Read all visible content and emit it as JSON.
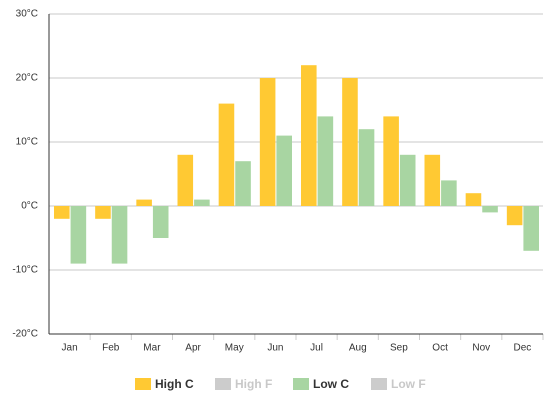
{
  "chart_data": {
    "type": "bar",
    "categories": [
      "Jan",
      "Feb",
      "Mar",
      "Apr",
      "May",
      "Jun",
      "Jul",
      "Aug",
      "Sep",
      "Oct",
      "Nov",
      "Dec"
    ],
    "series": [
      {
        "name": "High C",
        "color": "#ffc933",
        "values": [
          -2,
          -2,
          1,
          8,
          16,
          20,
          22,
          20,
          14,
          8,
          2,
          -3
        ]
      },
      {
        "name": "High F",
        "color": "#cccccc",
        "values": null,
        "hidden": true
      },
      {
        "name": "Low C",
        "color": "#a8d5a2",
        "values": [
          -9,
          -9,
          -5,
          1,
          7,
          11,
          14,
          12,
          8,
          4,
          -1,
          -7
        ]
      },
      {
        "name": "Low F",
        "color": "#cccccc",
        "values": null,
        "hidden": true
      }
    ],
    "ylim": [
      -20,
      30
    ],
    "yticks": [
      {
        "value": -20,
        "label": "-20°C"
      },
      {
        "value": -10,
        "label": "-10°C"
      },
      {
        "value": 0,
        "label": "0°C"
      },
      {
        "value": 10,
        "label": "10°C"
      },
      {
        "value": 20,
        "label": "20°C"
      },
      {
        "value": 30,
        "label": "30°C"
      }
    ],
    "grid": true,
    "legend": "bottom"
  }
}
